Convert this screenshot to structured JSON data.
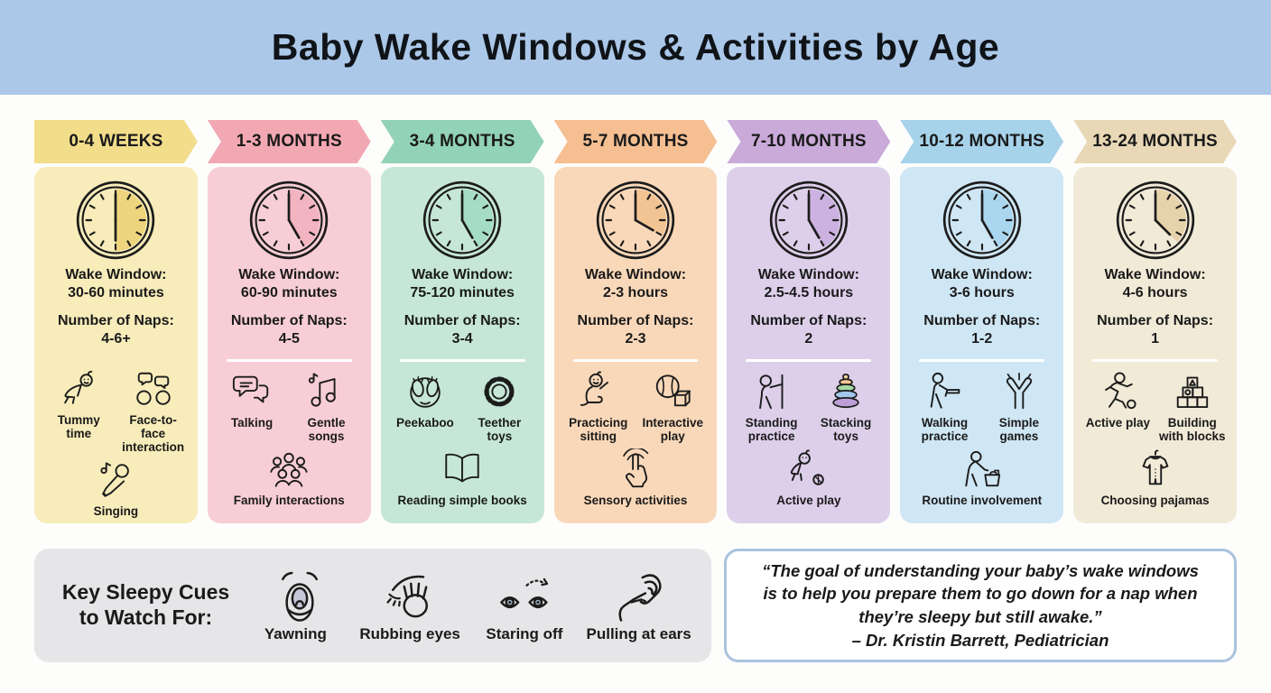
{
  "title": "Baby Wake Windows & Activities by Age",
  "columns": [
    {
      "header": "0-4 WEEKS",
      "colors": {
        "header": "#f2dd8b",
        "body": "#f7ecba",
        "wedge": "#eed47c"
      },
      "clock_hour_angle": 180,
      "wake_label": "Wake Window:",
      "wake_value": "30-60 minutes",
      "naps_label": "Number of Naps:",
      "naps_value": "4-6+",
      "activities": [
        {
          "icon": "crawling-baby-icon",
          "label": "Tummy time"
        },
        {
          "icon": "face-to-face-icon",
          "label": "Face-to-face interaction"
        },
        {
          "icon": "microphone-icon",
          "label": "Singing"
        }
      ]
    },
    {
      "header": "1-3 MONTHS",
      "colors": {
        "header": "#f2a8b3",
        "body": "#f8ced6",
        "wedge": "#f2b4c0"
      },
      "clock_hour_angle": 150,
      "wake_label": "Wake Window:",
      "wake_value": "60-90 minutes",
      "naps_label": "Number of Naps:",
      "naps_value": "4-5",
      "activities": [
        {
          "icon": "speech-bubbles-icon",
          "label": "Talking"
        },
        {
          "icon": "music-notes-icon",
          "label": "Gentle songs"
        },
        {
          "icon": "family-group-icon",
          "label": "Family interactions"
        }
      ]
    },
    {
      "header": "3-4 MONTHS",
      "colors": {
        "header": "#92d2b7",
        "body": "#c6e7d8",
        "wedge": "#a5dcc5"
      },
      "clock_hour_angle": 150,
      "wake_label": "Wake Window:",
      "wake_value": "75-120 minutes",
      "naps_label": "Number of Naps:",
      "naps_value": "3-4",
      "activities": [
        {
          "icon": "peekaboo-icon",
          "label": "Peekaboo"
        },
        {
          "icon": "teether-ring-icon",
          "label": "Teether toys"
        },
        {
          "icon": "open-book-icon",
          "label": "Reading simple books"
        }
      ]
    },
    {
      "header": "5-7 MONTHS",
      "colors": {
        "header": "#f5bf92",
        "body": "#f9d8b9",
        "wedge": "#f3c493"
      },
      "clock_hour_angle": 120,
      "wake_label": "Wake Window:",
      "wake_value": "2-3 hours",
      "naps_label": "Number of Naps:",
      "naps_value": "2-3",
      "activities": [
        {
          "icon": "sitting-baby-icon",
          "label": "Practicing sitting"
        },
        {
          "icon": "ball-and-block-icon",
          "label": "Interactive play"
        },
        {
          "icon": "touch-hand-icon",
          "label": "Sensory activities"
        }
      ]
    },
    {
      "header": "7-10 MONTHS",
      "colors": {
        "header": "#c9aad9",
        "body": "#ddcfea",
        "wedge": "#ccb2e0"
      },
      "clock_hour_angle": 150,
      "wake_label": "Wake Window:",
      "wake_value": "2.5-4.5 hours",
      "naps_label": "Number of Naps:",
      "naps_value": "2",
      "activities": [
        {
          "icon": "standing-support-icon",
          "label": "Standing practice"
        },
        {
          "icon": "stacking-rings-icon",
          "label": "Stacking toys"
        },
        {
          "icon": "crawling-ball-icon",
          "label": "Active play"
        }
      ]
    },
    {
      "header": "10-12 MONTHS",
      "colors": {
        "header": "#a6d2ea",
        "body": "#cfe6f4",
        "wedge": "#aad6ef"
      },
      "clock_hour_angle": 150,
      "wake_label": "Wake Window:",
      "wake_value": "3-6 hours",
      "naps_label": "Number of Naps:",
      "naps_value": "1-2",
      "activities": [
        {
          "icon": "push-walker-icon",
          "label": "Walking practice"
        },
        {
          "icon": "clapping-hands-icon",
          "label": "Simple games"
        },
        {
          "icon": "laundry-basket-icon",
          "label": "Routine involvement"
        }
      ]
    },
    {
      "header": "13-24 MONTHS",
      "colors": {
        "header": "#e9d8b6",
        "body": "#f1ead7",
        "wedge": "#e7d3ab"
      },
      "clock_hour_angle": 135,
      "wake_label": "Wake Window:",
      "wake_value": "4-6 hours",
      "naps_label": "Number of Naps:",
      "naps_value": "1",
      "activities": [
        {
          "icon": "running-ball-icon",
          "label": "Active play"
        },
        {
          "icon": "building-blocks-icon",
          "label": "Building with blocks"
        },
        {
          "icon": "pajamas-icon",
          "label": "Choosing pajamas"
        }
      ]
    }
  ],
  "cues": {
    "title": "Key Sleepy Cues to Watch For:",
    "items": [
      {
        "icon": "yawning-icon",
        "label": "Yawning"
      },
      {
        "icon": "rubbing-eyes-icon",
        "label": "Rubbing eyes"
      },
      {
        "icon": "staring-eyes-icon",
        "label": "Staring off"
      },
      {
        "icon": "ear-pulling-icon",
        "label": "Pulling at ears"
      }
    ]
  },
  "quote": {
    "text": "“The goal of understanding your baby’s wake windows is to help you prepare them to go down for a nap when they’re sleepy but still awake.”",
    "attribution": "– Dr. Kristin Barrett, Pediatrician"
  }
}
